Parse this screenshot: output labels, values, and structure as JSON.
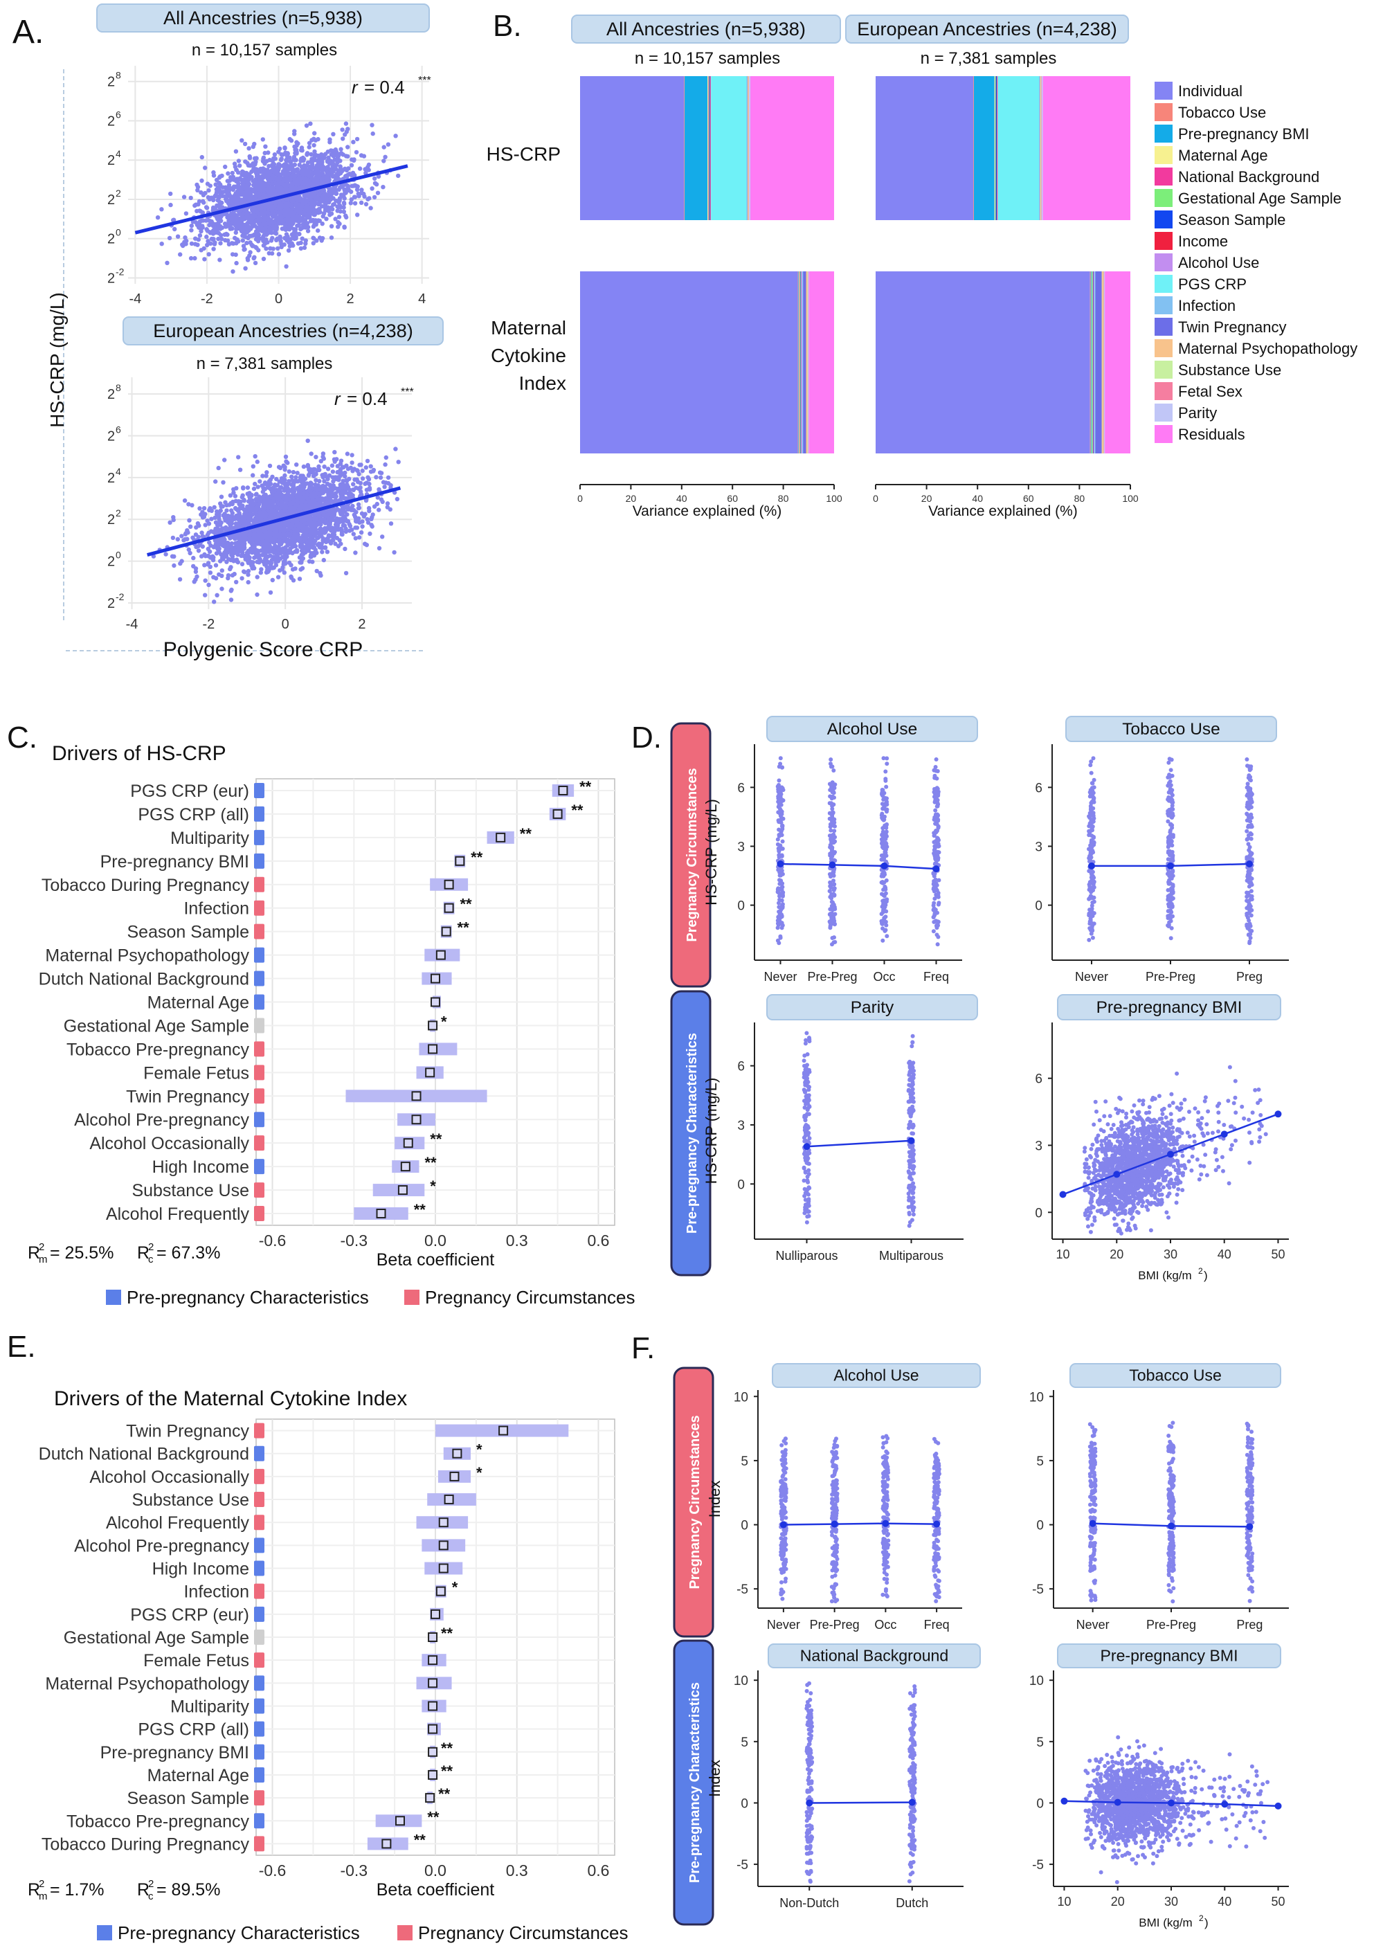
{
  "colors": {
    "dot": "#8484ec",
    "line": "#1f35e0",
    "header": "#c9ddf0",
    "headerStroke": "#a9c6e4",
    "preColor": "#5b7fe8",
    "pregColor": "#ee6a7b",
    "greyColor": "#cfcfcf",
    "ciColor": "#b9b9f4"
  },
  "panel_labels": {
    "A": "A.",
    "B": "B.",
    "C": "C.",
    "D": "D.",
    "E": "E.",
    "F": "F."
  },
  "panelA": {
    "ylabel": "HS-CRP (mg/L)",
    "xlabel": "Polygenic Score CRP",
    "plots": [
      {
        "header": "All Ancestries (n=5,938)",
        "samples": "n = 10,157 samples",
        "r": "r = 0.4",
        "stars": "***",
        "xticks": [
          "-4",
          "-2",
          "0",
          "2",
          "4"
        ],
        "yticks": [
          "2",
          "2",
          "2",
          "2",
          "2",
          "2"
        ],
        "yexp": [
          "8",
          "6",
          "4",
          "2",
          "0",
          "-2"
        ]
      },
      {
        "header": "European Ancestries (n=4,238)",
        "samples": "n = 7,381 samples",
        "r": "r = 0.4",
        "stars": "***",
        "xticks": [
          "-4",
          "-2",
          "0",
          "2"
        ],
        "yticks": [
          "2",
          "2",
          "2",
          "2",
          "2",
          "2"
        ],
        "yexp": [
          "8",
          "6",
          "4",
          "2",
          "0",
          "-2"
        ]
      }
    ]
  },
  "chart_data": [
    {
      "type": "scatter",
      "panel": "A-top",
      "title": "All Ancestries (n=5,938)",
      "xlabel": "Polygenic Score CRP",
      "ylabel": "HS-CRP (mg/L)",
      "xlim": [
        -4.2,
        4.2
      ],
      "ylim": [
        -2.3,
        8.8
      ],
      "fit": {
        "x": [
          -4,
          3.6
        ],
        "y": [
          0.3,
          3.7
        ]
      }
    },
    {
      "type": "scatter",
      "panel": "A-bottom",
      "title": "European Ancestries (n=4,238)",
      "xlabel": "Polygenic Score CRP",
      "ylabel": "HS-CRP (mg/L)",
      "xlim": [
        -4.1,
        3.3
      ],
      "ylim": [
        -2.3,
        8.8
      ],
      "fit": {
        "x": [
          -3.6,
          3.0
        ],
        "y": [
          0.3,
          3.5
        ]
      }
    },
    {
      "type": "bar",
      "panel": "B",
      "orientation": "horizontal",
      "stacked": true,
      "xlabel": "Variance explained (%)",
      "categories": [
        "HS-CRP",
        "Maternal Cytokine Index"
      ],
      "groups": [
        "All Ancestries (n=5,938)",
        "European Ancestries (n=4,238)"
      ],
      "series": [
        {
          "name": "Individual",
          "values_all": [
            41,
            87
          ],
          "values_eur": [
            38,
            84
          ]
        },
        {
          "name": "Tobacco Use",
          "values_all": [
            0.2,
            0.2
          ],
          "values_eur": [
            0.2,
            0.3
          ]
        },
        {
          "name": "Pre-pregnancy BMI",
          "values_all": [
            9,
            0.2
          ],
          "values_eur": [
            8,
            0.3
          ]
        },
        {
          "name": "Maternal Age",
          "values_all": [
            0.3,
            0.2
          ],
          "values_eur": [
            0.3,
            0.2
          ]
        },
        {
          "name": "National Background",
          "values_all": [
            0.2,
            0.2
          ],
          "values_eur": [
            0,
            0
          ]
        },
        {
          "name": "Gestational Age Sample",
          "values_all": [
            0.2,
            0.3
          ],
          "values_eur": [
            0.2,
            0.3
          ]
        },
        {
          "name": "Season Sample",
          "values_all": [
            0.3,
            0.2
          ],
          "values_eur": [
            0.4,
            0.2
          ]
        },
        {
          "name": "Income",
          "values_all": [
            0.2,
            0.1
          ],
          "values_eur": [
            0.2,
            0.1
          ]
        },
        {
          "name": "Alcohol Use",
          "values_all": [
            0.2,
            0.3
          ],
          "values_eur": [
            0.2,
            0.3
          ]
        },
        {
          "name": "PGS CRP",
          "values_all": [
            14,
            0.1
          ],
          "values_eur": [
            16,
            0.1
          ]
        },
        {
          "name": "Infection",
          "values_all": [
            0.3,
            0.3
          ],
          "values_eur": [
            0.3,
            0.3
          ]
        },
        {
          "name": "Twin Pregnancy",
          "values_all": [
            0.1,
            1.2
          ],
          "values_eur": [
            0.1,
            2.5
          ]
        },
        {
          "name": "Maternal Psychopathology",
          "values_all": [
            0.3,
            0.5
          ],
          "values_eur": [
            0.3,
            0.5
          ]
        },
        {
          "name": "Substance Use",
          "values_all": [
            0.1,
            0.2
          ],
          "values_eur": [
            0.1,
            0.2
          ]
        },
        {
          "name": "Fetal Sex",
          "values_all": [
            0.2,
            0.2
          ],
          "values_eur": [
            0.2,
            0.2
          ]
        },
        {
          "name": "Parity",
          "values_all": [
            0.5,
            0.3
          ],
          "values_eur": [
            0.5,
            0.3
          ]
        },
        {
          "name": "Residuals",
          "values_all": [
            33,
            10
          ],
          "values_eur": [
            34,
            10
          ]
        }
      ],
      "xticks": [
        "0",
        "20",
        "40",
        "60",
        "80",
        "100"
      ]
    },
    {
      "type": "bar",
      "panel": "C",
      "orientation": "horizontal",
      "title": "Drivers of HS-CRP",
      "xlabel": "Beta coefficient",
      "xlim": [
        -0.66,
        0.66
      ],
      "xticks": [
        "-0.6",
        "-0.3",
        "0.0",
        "0.3",
        "0.6"
      ],
      "rows": [
        {
          "label": "PGS CRP (eur)",
          "est": 0.47,
          "lo": 0.43,
          "hi": 0.51,
          "sig": "**",
          "group": "pre"
        },
        {
          "label": "PGS CRP (all)",
          "est": 0.45,
          "lo": 0.42,
          "hi": 0.48,
          "sig": "**",
          "group": "pre"
        },
        {
          "label": "Multiparity",
          "est": 0.24,
          "lo": 0.19,
          "hi": 0.29,
          "sig": "**",
          "group": "pre"
        },
        {
          "label": "Pre-pregnancy BMI",
          "est": 0.09,
          "lo": 0.07,
          "hi": 0.11,
          "sig": "**",
          "group": "pre"
        },
        {
          "label": "Tobacco During Pregnancy",
          "est": 0.05,
          "lo": -0.02,
          "hi": 0.12,
          "sig": "",
          "group": "preg"
        },
        {
          "label": "Infection",
          "est": 0.05,
          "lo": 0.03,
          "hi": 0.07,
          "sig": "**",
          "group": "preg"
        },
        {
          "label": "Season Sample",
          "est": 0.04,
          "lo": 0.02,
          "hi": 0.06,
          "sig": "**",
          "group": "preg"
        },
        {
          "label": "Maternal Psychopathology",
          "est": 0.02,
          "lo": -0.04,
          "hi": 0.09,
          "sig": "",
          "group": "pre"
        },
        {
          "label": "Dutch National Background",
          "est": 0.0,
          "lo": -0.05,
          "hi": 0.06,
          "sig": "",
          "group": "pre"
        },
        {
          "label": "Maternal Age",
          "est": 0.0,
          "lo": -0.01,
          "hi": 0.02,
          "sig": "",
          "group": "pre"
        },
        {
          "label": "Gestational Age Sample",
          "est": -0.01,
          "lo": -0.02,
          "hi": 0.0,
          "sig": "*",
          "group": "grey"
        },
        {
          "label": "Tobacco Pre-pregnancy",
          "est": -0.01,
          "lo": -0.06,
          "hi": 0.08,
          "sig": "",
          "group": "preg"
        },
        {
          "label": "Female Fetus",
          "est": -0.02,
          "lo": -0.07,
          "hi": 0.03,
          "sig": "",
          "group": "preg"
        },
        {
          "label": "Twin Pregnancy",
          "est": -0.07,
          "lo": -0.33,
          "hi": 0.19,
          "sig": "",
          "group": "preg"
        },
        {
          "label": "Alcohol Pre-pregnancy",
          "est": -0.07,
          "lo": -0.14,
          "hi": 0.0,
          "sig": "",
          "group": "pre"
        },
        {
          "label": "Alcohol Occasionally",
          "est": -0.1,
          "lo": -0.15,
          "hi": -0.04,
          "sig": "**",
          "group": "preg"
        },
        {
          "label": "High Income",
          "est": -0.11,
          "lo": -0.16,
          "hi": -0.06,
          "sig": "**",
          "group": "pre"
        },
        {
          "label": "Substance Use",
          "est": -0.12,
          "lo": -0.23,
          "hi": -0.04,
          "sig": "*",
          "group": "preg"
        },
        {
          "label": "Alcohol Frequently",
          "est": -0.2,
          "lo": -0.3,
          "hi": -0.1,
          "sig": "**",
          "group": "preg"
        }
      ]
    },
    {
      "type": "bar",
      "panel": "E",
      "orientation": "horizontal",
      "title": "Drivers of the Maternal Cytokine Index",
      "xlabel": "Beta coefficient",
      "xlim": [
        -0.66,
        0.66
      ],
      "xticks": [
        "-0.6",
        "-0.3",
        "0.0",
        "0.3",
        "0.6"
      ],
      "rows": [
        {
          "label": "Twin Pregnancy",
          "est": 0.25,
          "lo": 0.0,
          "hi": 0.49,
          "sig": "",
          "group": "preg"
        },
        {
          "label": "Dutch National Background",
          "est": 0.08,
          "lo": 0.03,
          "hi": 0.13,
          "sig": "*",
          "group": "pre"
        },
        {
          "label": "Alcohol Occasionally",
          "est": 0.07,
          "lo": 0.01,
          "hi": 0.13,
          "sig": "*",
          "group": "preg"
        },
        {
          "label": "Substance Use",
          "est": 0.05,
          "lo": -0.03,
          "hi": 0.15,
          "sig": "",
          "group": "preg"
        },
        {
          "label": "Alcohol Frequently",
          "est": 0.03,
          "lo": -0.07,
          "hi": 0.12,
          "sig": "",
          "group": "preg"
        },
        {
          "label": "Alcohol Pre-pregnancy",
          "est": 0.03,
          "lo": -0.05,
          "hi": 0.11,
          "sig": "",
          "group": "pre"
        },
        {
          "label": "High Income",
          "est": 0.03,
          "lo": -0.04,
          "hi": 0.1,
          "sig": "",
          "group": "pre"
        },
        {
          "label": "Infection",
          "est": 0.02,
          "lo": 0.0,
          "hi": 0.04,
          "sig": "*",
          "group": "preg"
        },
        {
          "label": "PGS CRP (eur)",
          "est": 0.0,
          "lo": -0.02,
          "hi": 0.03,
          "sig": "",
          "group": "pre"
        },
        {
          "label": "Gestational Age Sample",
          "est": -0.01,
          "lo": -0.02,
          "hi": 0.0,
          "sig": "**",
          "group": "grey"
        },
        {
          "label": "Female Fetus",
          "est": -0.01,
          "lo": -0.05,
          "hi": 0.04,
          "sig": "",
          "group": "preg"
        },
        {
          "label": "Maternal Psychopathology",
          "est": -0.01,
          "lo": -0.07,
          "hi": 0.06,
          "sig": "",
          "group": "pre"
        },
        {
          "label": "Multiparity",
          "est": -0.01,
          "lo": -0.05,
          "hi": 0.04,
          "sig": "",
          "group": "pre"
        },
        {
          "label": "PGS CRP (all)",
          "est": -0.01,
          "lo": -0.03,
          "hi": 0.02,
          "sig": "",
          "group": "pre"
        },
        {
          "label": "Pre-pregnancy BMI",
          "est": -0.01,
          "lo": -0.02,
          "hi": 0.0,
          "sig": "**",
          "group": "pre"
        },
        {
          "label": "Maternal Age",
          "est": -0.01,
          "lo": -0.02,
          "hi": 0.0,
          "sig": "**",
          "group": "pre"
        },
        {
          "label": "Season Sample",
          "est": -0.02,
          "lo": -0.03,
          "hi": -0.01,
          "sig": "**",
          "group": "preg"
        },
        {
          "label": "Tobacco Pre-pregnancy",
          "est": -0.13,
          "lo": -0.22,
          "hi": -0.05,
          "sig": "**",
          "group": "pre"
        },
        {
          "label": "Tobacco During Pregnancy",
          "est": -0.18,
          "lo": -0.25,
          "hi": -0.1,
          "sig": "**",
          "group": "preg"
        }
      ]
    },
    {
      "type": "line",
      "panel": "D",
      "plots": [
        {
          "title": "Alcohol Use",
          "categories": [
            "Never",
            "Pre-Preg",
            "Occ",
            "Freq"
          ],
          "means": [
            2.1,
            2.05,
            2.0,
            1.85
          ],
          "ylabel": "HS-CRP (mg/L)",
          "yticks": [
            "0",
            "3",
            "6"
          ]
        },
        {
          "title": "Tobacco Use",
          "categories": [
            "Never",
            "Pre-Preg",
            "Preg"
          ],
          "means": [
            2.0,
            2.0,
            2.1
          ],
          "yticks": [
            "0",
            "3",
            "6"
          ]
        },
        {
          "title": "Parity",
          "categories": [
            "Nulliparous",
            "Multiparous"
          ],
          "means": [
            1.9,
            2.2
          ],
          "ylabel": "HS-CRP (mg/L)",
          "yticks": [
            "0",
            "3",
            "6"
          ]
        },
        {
          "title": "Pre-pregnancy BMI",
          "type": "scatter",
          "xlabel": "BMI (kg/m2)",
          "xticks": [
            "10",
            "20",
            "30",
            "40",
            "50"
          ],
          "fit_x": [
            10,
            20,
            30,
            40,
            50
          ],
          "fit_y": [
            0.8,
            1.7,
            2.6,
            3.5,
            4.4
          ],
          "yticks": [
            "0",
            "3",
            "6"
          ]
        }
      ]
    },
    {
      "type": "line",
      "panel": "F",
      "plots": [
        {
          "title": "Alcohol Use",
          "categories": [
            "Never",
            "Pre-Preg",
            "Occ",
            "Freq"
          ],
          "means": [
            0.0,
            0.05,
            0.1,
            0.05
          ],
          "ylabel": "Index",
          "yticks": [
            "-5",
            "0",
            "5",
            "10"
          ]
        },
        {
          "title": "Tobacco Use",
          "categories": [
            "Never",
            "Pre-Preg",
            "Preg"
          ],
          "means": [
            0.1,
            -0.1,
            -0.15
          ],
          "yticks": [
            "-5",
            "0",
            "5",
            "10"
          ]
        },
        {
          "title": "National Background",
          "categories": [
            "Non-Dutch",
            "Dutch"
          ],
          "means": [
            0.0,
            0.05
          ],
          "ylabel": "Index",
          "yticks": [
            "-5",
            "0",
            "5",
            "10"
          ]
        },
        {
          "title": "Pre-pregnancy BMI",
          "type": "scatter",
          "xlabel": "BMI (kg/m2)",
          "xticks": [
            "10",
            "20",
            "30",
            "40",
            "50"
          ],
          "fit_x": [
            10,
            20,
            30,
            40,
            50
          ],
          "fit_y": [
            0.15,
            0.05,
            0.0,
            -0.1,
            -0.25
          ],
          "yticks": [
            "-5",
            "0",
            "5",
            "10"
          ]
        }
      ]
    }
  ],
  "panelB": {
    "row_labels": [
      "HS-CRP",
      "Maternal",
      "Cytokine",
      "Index"
    ],
    "headers": [
      "All Ancestries (n=5,938)",
      "European Ancestries (n=4,238)"
    ],
    "samples": [
      "n = 10,157 samples",
      "n = 7,381 samples"
    ],
    "xlabel": "Variance explained (%)",
    "legend_colors": [
      "#8484f4",
      "#f7857a",
      "#14abe8",
      "#f7f190",
      "#f23a9e",
      "#7cee7a",
      "#1247f0",
      "#f0203f",
      "#c28ef0",
      "#6ff1f7",
      "#82c1f2",
      "#6c6ee8",
      "#f8c38c",
      "#c8f0a0",
      "#f57ea0",
      "#c1c6f7",
      "#ff7bf5"
    ]
  },
  "panelC": {
    "r2": "R²m = 25.5%    R²c= 67.3%",
    "r2m": "R",
    "r2mval": "m",
    "r2mnum": "= 25.5%",
    "r2c": "R",
    "r2cval": "c",
    "r2cnum": "= 67.3%"
  },
  "panelE": {
    "r2mnum": "= 1.7%",
    "r2cnum": "= 89.5%"
  },
  "legend": {
    "pre": "Pre-pregnancy Characteristics",
    "preg": "Pregnancy Circumstances"
  },
  "side_labels": {
    "preg": "Pregnancy Circumstances",
    "pre": "Pre-pregnancy Characteristics"
  }
}
